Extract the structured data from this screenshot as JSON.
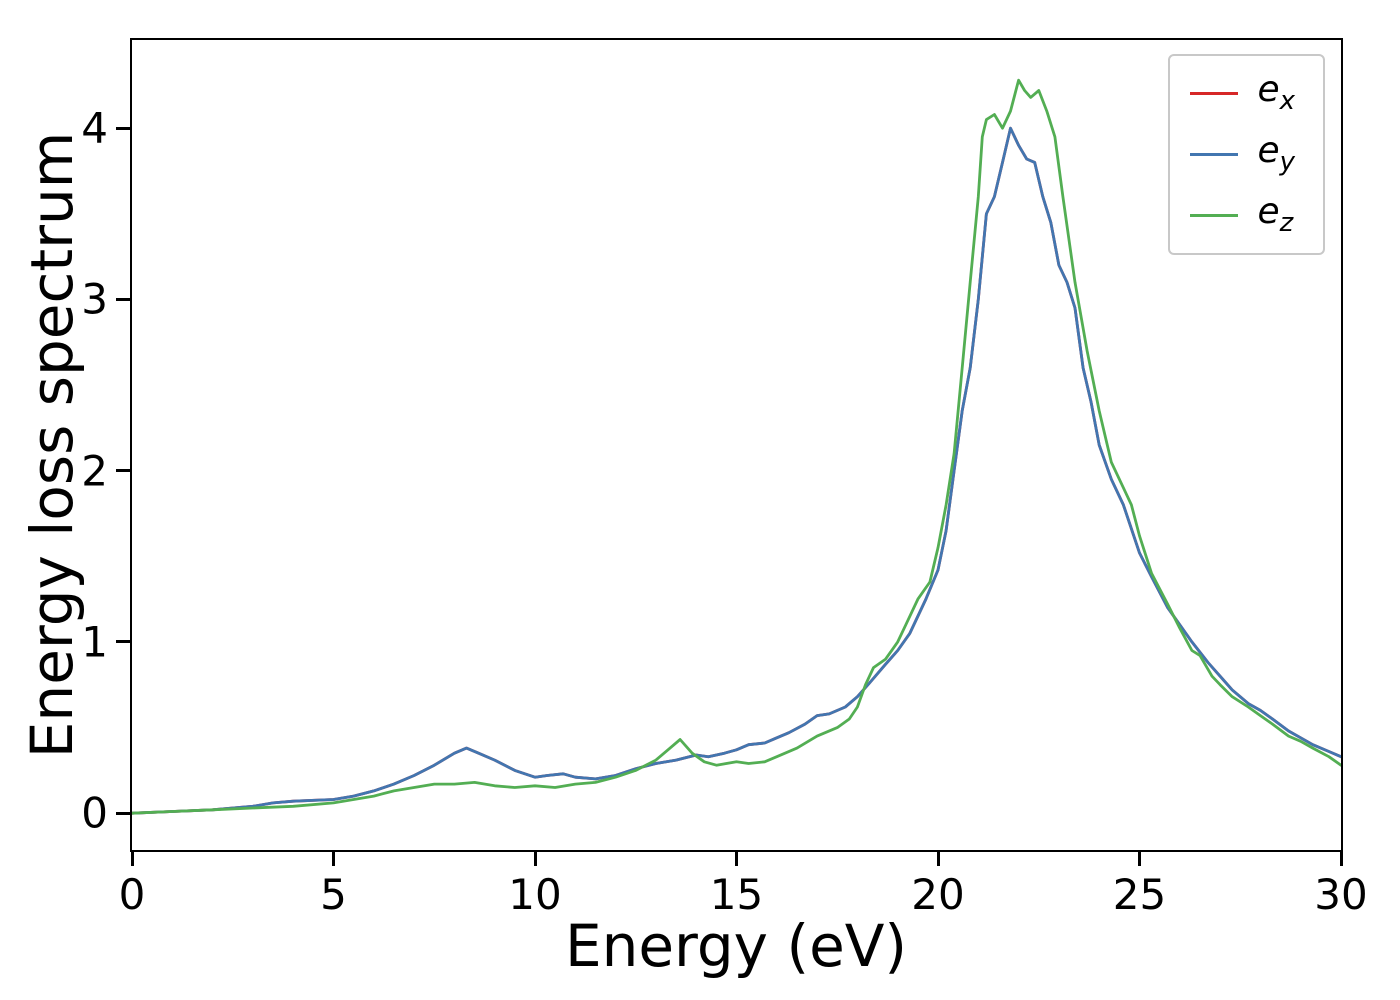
{
  "chart_data": {
    "type": "line",
    "title": "",
    "xlabel": "Energy (eV)",
    "ylabel": "Energy loss spectrum",
    "xlim": [
      0,
      30
    ],
    "ylim": [
      -0.215,
      4.515
    ],
    "xticks": [
      0,
      5,
      10,
      15,
      20,
      25,
      30
    ],
    "yticks": [
      0,
      1,
      2,
      3,
      4
    ],
    "grid": false,
    "legend_position": "upper right",
    "series": [
      {
        "name": "e_x",
        "label_main": "e",
        "label_sub": "x",
        "color": "#d62728",
        "points": [
          [
            0,
            0
          ],
          [
            1,
            0.01
          ],
          [
            2,
            0.02
          ],
          [
            3,
            0.04
          ],
          [
            3.5,
            0.06
          ],
          [
            4,
            0.07
          ],
          [
            5,
            0.08
          ],
          [
            5.5,
            0.1
          ],
          [
            6,
            0.13
          ],
          [
            6.5,
            0.17
          ],
          [
            7,
            0.22
          ],
          [
            7.5,
            0.28
          ],
          [
            8,
            0.35
          ],
          [
            8.3,
            0.38
          ],
          [
            8.6,
            0.35
          ],
          [
            9,
            0.31
          ],
          [
            9.5,
            0.25
          ],
          [
            10,
            0.21
          ],
          [
            10.3,
            0.22
          ],
          [
            10.7,
            0.23
          ],
          [
            11,
            0.21
          ],
          [
            11.5,
            0.2
          ],
          [
            12,
            0.22
          ],
          [
            12.5,
            0.26
          ],
          [
            13,
            0.29
          ],
          [
            13.5,
            0.31
          ],
          [
            14,
            0.34
          ],
          [
            14.3,
            0.33
          ],
          [
            14.7,
            0.35
          ],
          [
            15,
            0.37
          ],
          [
            15.3,
            0.4
          ],
          [
            15.7,
            0.41
          ],
          [
            16,
            0.44
          ],
          [
            16.3,
            0.47
          ],
          [
            16.7,
            0.52
          ],
          [
            17,
            0.57
          ],
          [
            17.3,
            0.58
          ],
          [
            17.7,
            0.62
          ],
          [
            18,
            0.68
          ],
          [
            18.3,
            0.76
          ],
          [
            18.7,
            0.87
          ],
          [
            19,
            0.95
          ],
          [
            19.3,
            1.05
          ],
          [
            19.7,
            1.25
          ],
          [
            20,
            1.42
          ],
          [
            20.2,
            1.65
          ],
          [
            20.4,
            2.0
          ],
          [
            20.6,
            2.35
          ],
          [
            20.8,
            2.6
          ],
          [
            21,
            3.0
          ],
          [
            21.2,
            3.5
          ],
          [
            21.4,
            3.6
          ],
          [
            21.6,
            3.8
          ],
          [
            21.8,
            4.0
          ],
          [
            22,
            3.9
          ],
          [
            22.2,
            3.82
          ],
          [
            22.4,
            3.8
          ],
          [
            22.6,
            3.6
          ],
          [
            22.8,
            3.45
          ],
          [
            23,
            3.2
          ],
          [
            23.2,
            3.1
          ],
          [
            23.4,
            2.95
          ],
          [
            23.6,
            2.6
          ],
          [
            23.8,
            2.4
          ],
          [
            24,
            2.15
          ],
          [
            24.3,
            1.95
          ],
          [
            24.6,
            1.8
          ],
          [
            25,
            1.52
          ],
          [
            25.3,
            1.38
          ],
          [
            25.7,
            1.2
          ],
          [
            26,
            1.1
          ],
          [
            26.3,
            1.0
          ],
          [
            26.7,
            0.88
          ],
          [
            27,
            0.8
          ],
          [
            27.3,
            0.72
          ],
          [
            27.7,
            0.64
          ],
          [
            28,
            0.6
          ],
          [
            28.3,
            0.55
          ],
          [
            28.7,
            0.48
          ],
          [
            29,
            0.44
          ],
          [
            29.3,
            0.4
          ],
          [
            29.7,
            0.36
          ],
          [
            30,
            0.33
          ]
        ]
      },
      {
        "name": "e_y",
        "label_main": "e",
        "label_sub": "y",
        "color": "#4276b0",
        "points": [
          [
            0,
            0
          ],
          [
            1,
            0.01
          ],
          [
            2,
            0.02
          ],
          [
            3,
            0.04
          ],
          [
            3.5,
            0.06
          ],
          [
            4,
            0.07
          ],
          [
            5,
            0.08
          ],
          [
            5.5,
            0.1
          ],
          [
            6,
            0.13
          ],
          [
            6.5,
            0.17
          ],
          [
            7,
            0.22
          ],
          [
            7.5,
            0.28
          ],
          [
            8,
            0.35
          ],
          [
            8.3,
            0.38
          ],
          [
            8.6,
            0.35
          ],
          [
            9,
            0.31
          ],
          [
            9.5,
            0.25
          ],
          [
            10,
            0.21
          ],
          [
            10.3,
            0.22
          ],
          [
            10.7,
            0.23
          ],
          [
            11,
            0.21
          ],
          [
            11.5,
            0.2
          ],
          [
            12,
            0.22
          ],
          [
            12.5,
            0.26
          ],
          [
            13,
            0.29
          ],
          [
            13.5,
            0.31
          ],
          [
            14,
            0.34
          ],
          [
            14.3,
            0.33
          ],
          [
            14.7,
            0.35
          ],
          [
            15,
            0.37
          ],
          [
            15.3,
            0.4
          ],
          [
            15.7,
            0.41
          ],
          [
            16,
            0.44
          ],
          [
            16.3,
            0.47
          ],
          [
            16.7,
            0.52
          ],
          [
            17,
            0.57
          ],
          [
            17.3,
            0.58
          ],
          [
            17.7,
            0.62
          ],
          [
            18,
            0.68
          ],
          [
            18.3,
            0.76
          ],
          [
            18.7,
            0.87
          ],
          [
            19,
            0.95
          ],
          [
            19.3,
            1.05
          ],
          [
            19.7,
            1.25
          ],
          [
            20,
            1.42
          ],
          [
            20.2,
            1.65
          ],
          [
            20.4,
            2.0
          ],
          [
            20.6,
            2.35
          ],
          [
            20.8,
            2.6
          ],
          [
            21,
            3.0
          ],
          [
            21.2,
            3.5
          ],
          [
            21.4,
            3.6
          ],
          [
            21.6,
            3.8
          ],
          [
            21.8,
            4.0
          ],
          [
            22,
            3.9
          ],
          [
            22.2,
            3.82
          ],
          [
            22.4,
            3.8
          ],
          [
            22.6,
            3.6
          ],
          [
            22.8,
            3.45
          ],
          [
            23,
            3.2
          ],
          [
            23.2,
            3.1
          ],
          [
            23.4,
            2.95
          ],
          [
            23.6,
            2.6
          ],
          [
            23.8,
            2.4
          ],
          [
            24,
            2.15
          ],
          [
            24.3,
            1.95
          ],
          [
            24.6,
            1.8
          ],
          [
            25,
            1.52
          ],
          [
            25.3,
            1.38
          ],
          [
            25.7,
            1.2
          ],
          [
            26,
            1.1
          ],
          [
            26.3,
            1.0
          ],
          [
            26.7,
            0.88
          ],
          [
            27,
            0.8
          ],
          [
            27.3,
            0.72
          ],
          [
            27.7,
            0.64
          ],
          [
            28,
            0.6
          ],
          [
            28.3,
            0.55
          ],
          [
            28.7,
            0.48
          ],
          [
            29,
            0.44
          ],
          [
            29.3,
            0.4
          ],
          [
            29.7,
            0.36
          ],
          [
            30,
            0.33
          ]
        ]
      },
      {
        "name": "e_z",
        "label_main": "e",
        "label_sub": "z",
        "color": "#53ae53",
        "points": [
          [
            0,
            0
          ],
          [
            1,
            0.01
          ],
          [
            2,
            0.02
          ],
          [
            3,
            0.03
          ],
          [
            4,
            0.04
          ],
          [
            5,
            0.06
          ],
          [
            5.5,
            0.08
          ],
          [
            6,
            0.1
          ],
          [
            6.5,
            0.13
          ],
          [
            7,
            0.15
          ],
          [
            7.5,
            0.17
          ],
          [
            8,
            0.17
          ],
          [
            8.5,
            0.18
          ],
          [
            9,
            0.16
          ],
          [
            9.5,
            0.15
          ],
          [
            10,
            0.16
          ],
          [
            10.5,
            0.15
          ],
          [
            11,
            0.17
          ],
          [
            11.5,
            0.18
          ],
          [
            12,
            0.21
          ],
          [
            12.5,
            0.25
          ],
          [
            13,
            0.31
          ],
          [
            13.3,
            0.37
          ],
          [
            13.6,
            0.43
          ],
          [
            13.9,
            0.35
          ],
          [
            14.2,
            0.3
          ],
          [
            14.5,
            0.28
          ],
          [
            15,
            0.3
          ],
          [
            15.3,
            0.29
          ],
          [
            15.7,
            0.3
          ],
          [
            16,
            0.33
          ],
          [
            16.5,
            0.38
          ],
          [
            17,
            0.45
          ],
          [
            17.5,
            0.5
          ],
          [
            17.8,
            0.55
          ],
          [
            18,
            0.62
          ],
          [
            18.2,
            0.75
          ],
          [
            18.4,
            0.85
          ],
          [
            18.7,
            0.9
          ],
          [
            19,
            1.0
          ],
          [
            19.2,
            1.1
          ],
          [
            19.5,
            1.25
          ],
          [
            19.8,
            1.35
          ],
          [
            20,
            1.55
          ],
          [
            20.2,
            1.8
          ],
          [
            20.4,
            2.1
          ],
          [
            20.6,
            2.6
          ],
          [
            20.8,
            3.1
          ],
          [
            21,
            3.6
          ],
          [
            21.1,
            3.95
          ],
          [
            21.2,
            4.05
          ],
          [
            21.4,
            4.08
          ],
          [
            21.6,
            4.0
          ],
          [
            21.8,
            4.1
          ],
          [
            22,
            4.28
          ],
          [
            22.15,
            4.22
          ],
          [
            22.3,
            4.18
          ],
          [
            22.5,
            4.22
          ],
          [
            22.7,
            4.1
          ],
          [
            22.9,
            3.95
          ],
          [
            23.1,
            3.6
          ],
          [
            23.4,
            3.1
          ],
          [
            23.7,
            2.7
          ],
          [
            24,
            2.35
          ],
          [
            24.3,
            2.05
          ],
          [
            24.6,
            1.9
          ],
          [
            24.8,
            1.8
          ],
          [
            25,
            1.62
          ],
          [
            25.3,
            1.4
          ],
          [
            25.7,
            1.22
          ],
          [
            26,
            1.08
          ],
          [
            26.3,
            0.95
          ],
          [
            26.5,
            0.92
          ],
          [
            26.8,
            0.8
          ],
          [
            27,
            0.75
          ],
          [
            27.3,
            0.68
          ],
          [
            27.7,
            0.62
          ],
          [
            28,
            0.57
          ],
          [
            28.3,
            0.52
          ],
          [
            28.7,
            0.45
          ],
          [
            29,
            0.42
          ],
          [
            29.3,
            0.38
          ],
          [
            29.7,
            0.33
          ],
          [
            30,
            0.28
          ]
        ]
      }
    ]
  }
}
